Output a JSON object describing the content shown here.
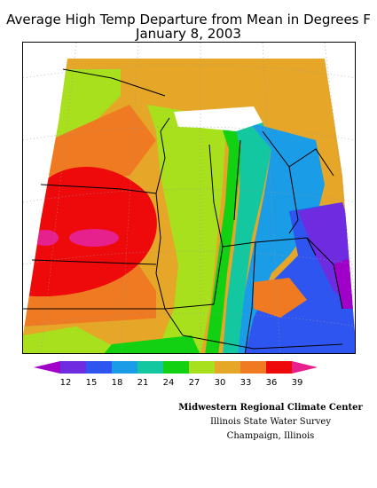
{
  "title": {
    "line1": "Average High Temp Departure from Mean in Degrees F",
    "line2": "January 8, 2003"
  },
  "legend": {
    "ticks": [
      "12",
      "15",
      "18",
      "21",
      "24",
      "27",
      "30",
      "33",
      "36",
      "39"
    ],
    "colors": [
      "#a000c8",
      "#6e2be0",
      "#2f55f0",
      "#1a9ce6",
      "#13c8a0",
      "#12d012",
      "#a8e01e",
      "#e6a628",
      "#ef7a22",
      "#ee0a0a",
      "#e6208c"
    ]
  },
  "credits": {
    "line1": "Midwestern Regional Climate Center",
    "line2": "Illinois State Water Survey",
    "line3": "Champaign, Illinois"
  }
}
